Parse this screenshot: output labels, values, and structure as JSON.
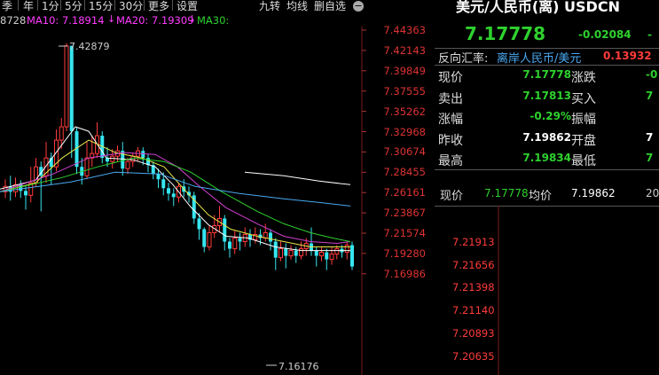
{
  "toolbar": {
    "items": [
      "季",
      "年",
      "1分",
      "5分",
      "15分",
      "30分",
      "更多",
      "设置"
    ],
    "right_items": [
      "九转",
      "均线",
      "删自选"
    ]
  },
  "ma_legend": {
    "prefix": "8728",
    "ma10": "MA10: 7.18914",
    "ma20": "MA20: 7.19309",
    "ma30": "MA30:",
    "colors": {
      "ma10": "#ff3cff",
      "ma20": "#ff3cff",
      "ma30": "#2ed12e"
    }
  },
  "chart": {
    "y_ticks": [
      "7.44363",
      "7.42143",
      "7.39849",
      "7.37555",
      "7.35262",
      "7.32968",
      "7.30674",
      "7.28455",
      "7.26161",
      "7.23867",
      "7.21574",
      "7.19280",
      "7.16986"
    ],
    "high_label": "7.42879",
    "low_label": "7.16176",
    "colors": {
      "up": "#ff3b3b",
      "down": "#36e6f0",
      "ma_white": "#ffffff",
      "ma_yellow": "#e8e84a",
      "ma_purple": "#d040d0",
      "ma_green": "#2ed12e",
      "ma_blue": "#4aa8f0",
      "grid": "#7a1a1a"
    }
  },
  "quote": {
    "title": "美元/人民币(离) USDCN",
    "price": "7.17778",
    "change": "-0.02084",
    "ref_label": "反向汇率:",
    "ref_name": "离岸人民币/美元",
    "ref_value": "0.13932",
    "rows": [
      {
        "l1": "现价",
        "v1": "7.17778",
        "l2": "涨跌",
        "v2": "-0",
        "c": "green"
      },
      {
        "l1": "卖出",
        "v1": "7.17813",
        "l2": "买入",
        "v2": "7",
        "c": "green"
      },
      {
        "l1": "涨幅",
        "v1": "-0.29%",
        "l2": "振幅",
        "v2": "",
        "c": "green"
      },
      {
        "l1": "昨收",
        "v1": "7.19862",
        "l2": "开盘",
        "v2": "7",
        "c": "white"
      },
      {
        "l1": "最高",
        "v1": "7.19834",
        "l2": "最低",
        "v2": "7",
        "c": "green"
      }
    ],
    "intraday": {
      "now_label": "现价",
      "now_value": "7.17778",
      "avg_label": "均价",
      "avg_value": "7.19862",
      "extra": "20",
      "y_ticks": [
        "7.21913",
        "7.21656",
        "7.21398",
        "7.21140",
        "7.20893",
        "7.20635"
      ]
    }
  }
}
